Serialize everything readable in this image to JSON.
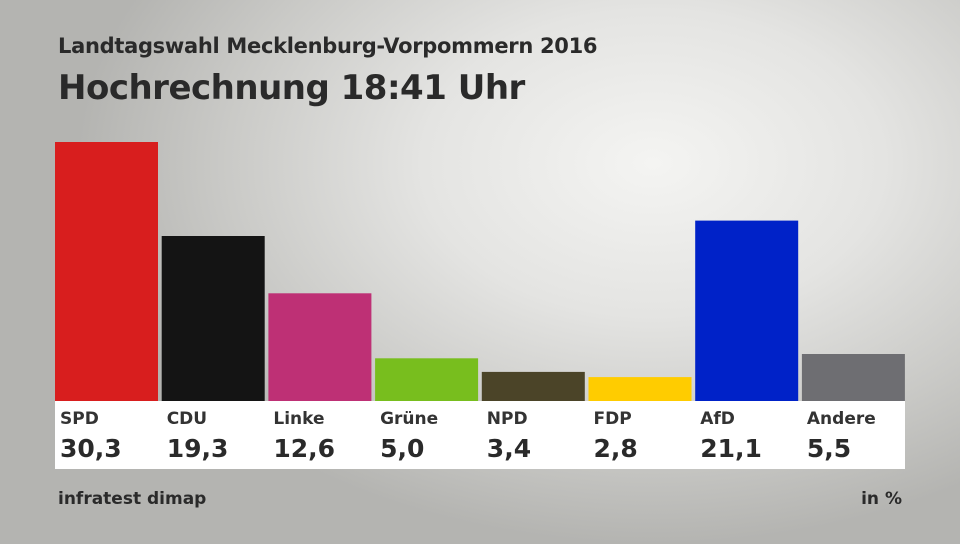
{
  "header": {
    "subtitle": "Landtagswahl Mecklenburg-Vorpommern 2016",
    "title": "Hochrechnung 18:41 Uhr"
  },
  "footer": {
    "source": "infratest dimap",
    "unit": "in %"
  },
  "chart_data": {
    "type": "bar",
    "title": "Hochrechnung 18:41 Uhr",
    "subtitle": "Landtagswahl Mecklenburg-Vorpommern 2016",
    "categories": [
      "SPD",
      "CDU",
      "Linke",
      "Grüne",
      "NPD",
      "FDP",
      "AfD",
      "Andere"
    ],
    "values": [
      30.3,
      19.3,
      12.6,
      5.0,
      3.4,
      2.8,
      21.1,
      5.5
    ],
    "value_labels": [
      "30,3",
      "19,3",
      "12,6",
      "5,0",
      "3,4",
      "2,8",
      "21,1",
      "5,5"
    ],
    "colors": [
      "#d81e1e",
      "#141414",
      "#be3075",
      "#78be1e",
      "#4b4428",
      "#ffcc00",
      "#0022c8",
      "#6e6e72"
    ],
    "unit": "in %",
    "source": "infratest dimap",
    "ylim": [
      0,
      30.3
    ],
    "grid": false
  }
}
